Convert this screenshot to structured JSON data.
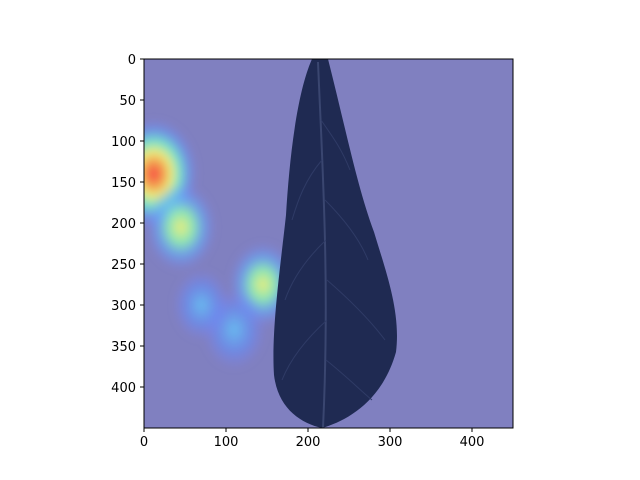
{
  "chart_data": {
    "type": "heatmap",
    "title": "",
    "xlabel": "",
    "ylabel": "",
    "xlim": [
      0,
      450
    ],
    "ylim": [
      450,
      0
    ],
    "x_ticks": [
      0,
      100,
      200,
      300,
      400
    ],
    "y_ticks": [
      0,
      50,
      100,
      150,
      200,
      250,
      300,
      350,
      400
    ],
    "y_axis_inverted": true,
    "colormap": "jet",
    "grid": false,
    "background_color": "#8080c0",
    "image_content": "leaf",
    "leaf_color": "#1f2a52",
    "hotspots": [
      {
        "x": 12,
        "y": 140,
        "intensity": 1.0
      },
      {
        "x": 45,
        "y": 205,
        "intensity": 0.6
      },
      {
        "x": 145,
        "y": 275,
        "intensity": 0.55
      },
      {
        "x": 110,
        "y": 330,
        "intensity": 0.45
      },
      {
        "x": 70,
        "y": 300,
        "intensity": 0.3
      }
    ]
  }
}
